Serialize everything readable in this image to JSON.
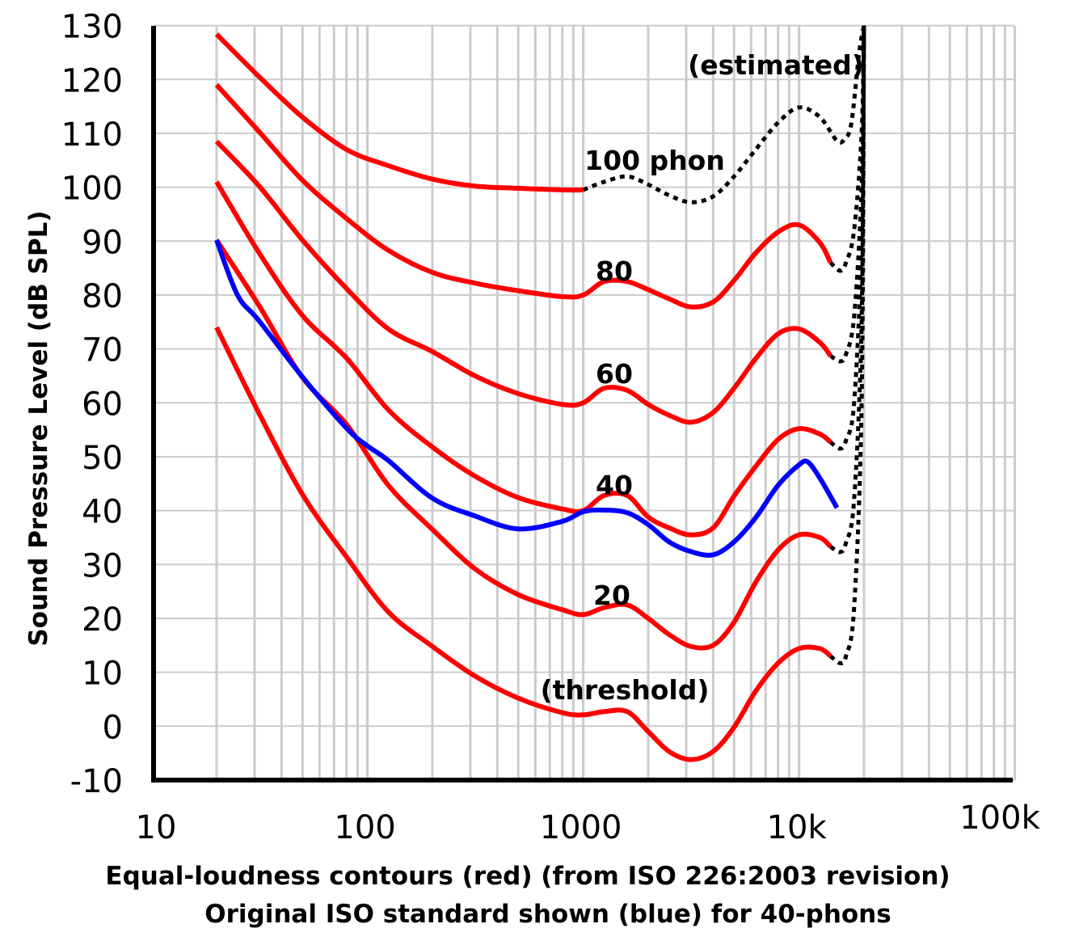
{
  "chart_data": {
    "type": "line",
    "x_scale": "log",
    "xlim": [
      10,
      100000
    ],
    "ylim": [
      -10,
      130
    ],
    "grid": true,
    "x_ticks": [
      10,
      100,
      1000,
      10000,
      100000
    ],
    "x_tick_labels": [
      "10",
      "100",
      "1000",
      "10k",
      "100k"
    ],
    "y_ticks": [
      130,
      120,
      110,
      100,
      90,
      80,
      70,
      60,
      50,
      40,
      30,
      20,
      10,
      0,
      -10
    ],
    "y_tick_labels": [
      "130",
      "120",
      "110",
      "100",
      "90",
      "80",
      "70",
      "60",
      "50",
      "40",
      "30",
      "20",
      "10",
      "0",
      "-10"
    ],
    "ylabel": "Sound Pressure Level (dB SPL)",
    "xlabel_line1": "Equal-loudness contours (red) (from ISO 226:2003 revision)",
    "xlabel_line2": "Original ISO standard shown (blue) for 40-phons",
    "colors": {
      "iso2003": "#ff0000",
      "original": "#0000ff",
      "estimated": "#000000",
      "grid": "#cccccc"
    },
    "annotations": {
      "estimated": "(estimated)",
      "p100": "100 phon",
      "p80": "80",
      "p60": "60",
      "p40": "40",
      "p20": "20",
      "threshold": "(threshold)"
    },
    "series": [
      {
        "name": "100 phon",
        "color": "#ff0000",
        "points": [
          [
            20,
            128.4
          ],
          [
            31.5,
            120.5
          ],
          [
            50,
            113
          ],
          [
            80,
            107
          ],
          [
            125,
            104
          ],
          [
            200,
            101.5
          ],
          [
            315,
            100.2
          ],
          [
            500,
            99.8
          ],
          [
            800,
            99.5
          ],
          [
            1000,
            99.5
          ]
        ],
        "estimated": [
          [
            1000,
            99.5
          ],
          [
            1250,
            101
          ],
          [
            1600,
            102
          ],
          [
            2000,
            100.5
          ],
          [
            2500,
            98.5
          ],
          [
            3150,
            97.2
          ],
          [
            4000,
            98.3
          ],
          [
            5000,
            102
          ],
          [
            6300,
            107
          ],
          [
            8000,
            112
          ],
          [
            10000,
            114.8
          ],
          [
            12500,
            113
          ],
          [
            15000,
            108.6
          ],
          [
            16300,
            109
          ],
          [
            17500,
            112
          ],
          [
            19000,
            125
          ],
          [
            20000,
            130
          ]
        ]
      },
      {
        "name": "80",
        "color": "#ff0000",
        "points": [
          [
            20,
            119
          ],
          [
            31.5,
            110.3
          ],
          [
            50,
            101.3
          ],
          [
            80,
            94.2
          ],
          [
            125,
            88.3
          ],
          [
            200,
            84.2
          ],
          [
            315,
            82.2
          ],
          [
            500,
            80.8
          ],
          [
            800,
            79.7
          ],
          [
            1000,
            80
          ],
          [
            1250,
            82.5
          ],
          [
            1600,
            82.5
          ],
          [
            2000,
            81
          ],
          [
            2500,
            79.3
          ],
          [
            3150,
            77.8
          ],
          [
            4000,
            78.7
          ],
          [
            5000,
            82.7
          ],
          [
            6300,
            87.8
          ],
          [
            8000,
            91.7
          ],
          [
            10000,
            93
          ],
          [
            12500,
            89.7
          ],
          [
            14000,
            86
          ]
        ],
        "estimated": [
          [
            14000,
            86
          ],
          [
            15500,
            84.5
          ],
          [
            16500,
            86
          ],
          [
            18000,
            92
          ],
          [
            19500,
            110
          ],
          [
            20000,
            130
          ]
        ]
      },
      {
        "name": "60",
        "color": "#ff0000",
        "points": [
          [
            20,
            108.5
          ],
          [
            31.5,
            100.2
          ],
          [
            50,
            90.2
          ],
          [
            80,
            81.2
          ],
          [
            125,
            73.7
          ],
          [
            200,
            69.5
          ],
          [
            315,
            65
          ],
          [
            500,
            61.7
          ],
          [
            800,
            59.7
          ],
          [
            1000,
            60
          ],
          [
            1250,
            62.7
          ],
          [
            1600,
            62.3
          ],
          [
            2000,
            59.7
          ],
          [
            2500,
            57.7
          ],
          [
            3150,
            56.4
          ],
          [
            4000,
            58.2
          ],
          [
            5000,
            62.7
          ],
          [
            6300,
            68.2
          ],
          [
            8000,
            72.8
          ],
          [
            10000,
            73.7
          ],
          [
            12500,
            71.2
          ],
          [
            14000,
            68.7
          ]
        ],
        "estimated": [
          [
            14000,
            68.7
          ],
          [
            15500,
            67.7
          ],
          [
            16500,
            69
          ],
          [
            18000,
            76
          ],
          [
            19500,
            100
          ],
          [
            20000,
            130
          ]
        ]
      },
      {
        "name": "40",
        "color": "#ff0000",
        "points": [
          [
            20,
            101
          ],
          [
            31.5,
            87.8
          ],
          [
            50,
            76.2
          ],
          [
            80,
            68.3
          ],
          [
            125,
            58.7
          ],
          [
            200,
            51.8
          ],
          [
            315,
            46.4
          ],
          [
            500,
            42.4
          ],
          [
            800,
            40.3
          ],
          [
            1000,
            40
          ],
          [
            1250,
            42.8
          ],
          [
            1600,
            42.8
          ],
          [
            2000,
            38.8
          ],
          [
            2500,
            36.8
          ],
          [
            3150,
            35.5
          ],
          [
            4000,
            36.8
          ],
          [
            5000,
            42.7
          ],
          [
            6300,
            48.2
          ],
          [
            8000,
            53.2
          ],
          [
            10000,
            55.2
          ],
          [
            12500,
            54.2
          ],
          [
            14000,
            52.7
          ]
        ],
        "estimated": [
          [
            14000,
            52.7
          ],
          [
            15500,
            51.5
          ],
          [
            16500,
            53
          ],
          [
            18000,
            60
          ],
          [
            19500,
            90
          ],
          [
            20000,
            130
          ]
        ]
      },
      {
        "name": "20",
        "color": "#ff0000",
        "points": [
          [
            20,
            90.2
          ],
          [
            31.5,
            78
          ],
          [
            50,
            64.7
          ],
          [
            80,
            56
          ],
          [
            125,
            44.7
          ],
          [
            200,
            36.5
          ],
          [
            315,
            29.2
          ],
          [
            500,
            24.4
          ],
          [
            800,
            21.6
          ],
          [
            1000,
            20.7
          ],
          [
            1250,
            22
          ],
          [
            1600,
            22.5
          ],
          [
            2000,
            20
          ],
          [
            2500,
            17
          ],
          [
            3150,
            14.8
          ],
          [
            4000,
            15
          ],
          [
            5000,
            19.3
          ],
          [
            6300,
            26.7
          ],
          [
            8000,
            32.7
          ],
          [
            10000,
            35.5
          ],
          [
            12500,
            35
          ],
          [
            14000,
            33.3
          ]
        ],
        "estimated": [
          [
            14000,
            33.3
          ],
          [
            15500,
            32.3
          ],
          [
            16500,
            34
          ],
          [
            18000,
            42
          ],
          [
            19500,
            75
          ],
          [
            20000,
            130
          ]
        ]
      },
      {
        "name": "(threshold)",
        "color": "#ff0000",
        "points": [
          [
            20,
            74
          ],
          [
            31.5,
            58
          ],
          [
            50,
            43
          ],
          [
            80,
            31.4
          ],
          [
            125,
            21.2
          ],
          [
            200,
            14.8
          ],
          [
            315,
            9.3
          ],
          [
            500,
            5.2
          ],
          [
            800,
            2.5
          ],
          [
            1000,
            2.1
          ],
          [
            1250,
            2.7
          ],
          [
            1600,
            2.7
          ],
          [
            2000,
            -1
          ],
          [
            2500,
            -4.7
          ],
          [
            3150,
            -6.2
          ],
          [
            4000,
            -4.7
          ],
          [
            5000,
            -0.2
          ],
          [
            6300,
            6.5
          ],
          [
            8000,
            11.7
          ],
          [
            10000,
            14.4
          ],
          [
            12500,
            14.4
          ],
          [
            14000,
            13
          ]
        ],
        "estimated": [
          [
            14000,
            13
          ],
          [
            15500,
            11.7
          ],
          [
            16500,
            13
          ],
          [
            18000,
            22
          ],
          [
            19500,
            60
          ],
          [
            20000,
            130
          ]
        ]
      },
      {
        "name": "Original ISO 40 phon",
        "color": "#0000ff",
        "points": [
          [
            20,
            90.2
          ],
          [
            25,
            80
          ],
          [
            31.5,
            75.2
          ],
          [
            50,
            64.8
          ],
          [
            80,
            55.3
          ],
          [
            100,
            52
          ],
          [
            125,
            49.3
          ],
          [
            200,
            42.3
          ],
          [
            315,
            39
          ],
          [
            500,
            36.6
          ],
          [
            800,
            38
          ],
          [
            1000,
            39.8
          ],
          [
            1250,
            40.1
          ],
          [
            1600,
            39.6
          ],
          [
            2000,
            37.4
          ],
          [
            2500,
            34.2
          ],
          [
            3150,
            32.4
          ],
          [
            4000,
            31.8
          ],
          [
            5000,
            34.2
          ],
          [
            6300,
            38.7
          ],
          [
            8000,
            44.7
          ],
          [
            10000,
            48.5
          ],
          [
            11000,
            49
          ],
          [
            12500,
            46
          ],
          [
            15000,
            40.5
          ]
        ]
      }
    ]
  }
}
